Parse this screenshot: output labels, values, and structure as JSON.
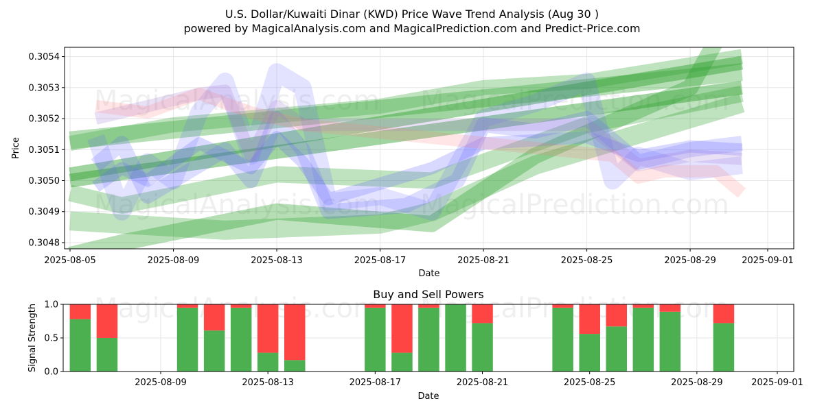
{
  "page": {
    "title_line1": "U.S. Dollar/Kuwaiti Dinar (KWD) Price Wave Trend Analysis (Aug 30 )",
    "title_line2": "powered by MagicalAnalysis.com and MagicalPrediction.com and Predict-Price.com",
    "watermark_left": "MagicalAnalysis.com",
    "watermark_right": "MagicalPrediction.com"
  },
  "chart_data": [
    {
      "type": "line",
      "xlabel": "Date",
      "ylabel": "Price",
      "x_tick_labels": [
        "2025-08-05",
        "2025-08-09",
        "2025-08-13",
        "2025-08-17",
        "2025-08-21",
        "2025-08-25",
        "2025-08-29",
        "2025-09-01"
      ],
      "y_tick_labels": [
        "0.3048",
        "0.3049",
        "0.3050",
        "0.3051",
        "0.3052",
        "0.3053",
        "0.3054"
      ],
      "ylim": [
        0.30478,
        0.30543
      ],
      "xlim": [
        "2025-08-05",
        "2025-09-01"
      ],
      "grid": true,
      "colors": {
        "green": "#2ca02c",
        "blue": "#6666ff",
        "red": "#ff7f7f",
        "purple": "#a070d0"
      },
      "bands": [
        {
          "color": "green",
          "opacity": 0.35,
          "width": 26,
          "points": [
            [
              "2025-08-05",
              0.30513
            ],
            [
              "2025-08-31",
              0.30535
            ]
          ]
        },
        {
          "color": "green",
          "opacity": 0.45,
          "width": 20,
          "points": [
            [
              "2025-08-05",
              0.30502
            ],
            [
              "2025-08-31",
              0.30538
            ]
          ]
        },
        {
          "color": "green",
          "opacity": 0.45,
          "width": 20,
          "points": [
            [
              "2025-08-05",
              0.305
            ],
            [
              "2025-08-31",
              0.3053
            ]
          ]
        },
        {
          "color": "green",
          "opacity": 0.3,
          "width": 28,
          "points": [
            [
              "2025-08-05",
              0.30487
            ],
            [
              "2025-08-11",
              0.30484
            ],
            [
              "2025-08-17",
              0.30486
            ],
            [
              "2025-08-19",
              0.3049
            ],
            [
              "2025-08-23",
              0.30505
            ],
            [
              "2025-08-29",
              0.3052
            ],
            [
              "2025-08-31",
              0.30525
            ]
          ]
        },
        {
          "color": "green",
          "opacity": 0.35,
          "width": 24,
          "points": [
            [
              "2025-08-05",
              0.30476
            ],
            [
              "2025-08-07",
              0.3048
            ],
            [
              "2025-08-13",
              0.3049
            ],
            [
              "2025-08-19",
              0.30486
            ],
            [
              "2025-08-23",
              0.30508
            ],
            [
              "2025-08-29",
              0.3053
            ],
            [
              "2025-08-30",
              0.30545
            ]
          ]
        },
        {
          "color": "green",
          "opacity": 0.3,
          "width": 24,
          "points": [
            [
              "2025-08-05",
              0.30496
            ],
            [
              "2025-08-07",
              0.30492
            ],
            [
              "2025-08-13",
              0.30502
            ],
            [
              "2025-08-19",
              0.305
            ],
            [
              "2025-08-25",
              0.30518
            ],
            [
              "2025-08-31",
              0.30528
            ]
          ]
        },
        {
          "color": "green",
          "opacity": 0.3,
          "width": 22,
          "points": [
            [
              "2025-08-05",
              0.30512
            ],
            [
              "2025-08-09",
              0.30518
            ],
            [
              "2025-08-13",
              0.30521
            ],
            [
              "2025-08-17",
              0.30524
            ],
            [
              "2025-08-21",
              0.3053
            ],
            [
              "2025-08-25",
              0.30532
            ],
            [
              "2025-08-31",
              0.3054
            ]
          ]
        },
        {
          "color": "blue",
          "opacity": 0.18,
          "width": 26,
          "points": [
            [
              "2025-08-06",
              0.30514
            ],
            [
              "2025-08-07",
              0.3049
            ],
            [
              "2025-08-08",
              0.30506
            ],
            [
              "2025-08-09",
              0.305
            ],
            [
              "2025-08-10",
              0.30522
            ],
            [
              "2025-08-11",
              0.30532
            ],
            [
              "2025-08-12",
              0.30508
            ],
            [
              "2025-08-13",
              0.30535
            ],
            [
              "2025-08-14",
              0.3053
            ],
            [
              "2025-08-15",
              0.30493
            ],
            [
              "2025-08-17",
              0.30495
            ],
            [
              "2025-08-19",
              0.3049
            ],
            [
              "2025-08-21",
              0.3052
            ],
            [
              "2025-08-23",
              0.30525
            ],
            [
              "2025-08-25",
              0.30532
            ],
            [
              "2025-08-26",
              0.305
            ],
            [
              "2025-08-27",
              0.30508
            ],
            [
              "2025-08-29",
              0.30503
            ],
            [
              "2025-08-31",
              0.30505
            ]
          ]
        },
        {
          "color": "blue",
          "opacity": 0.22,
          "width": 22,
          "points": [
            [
              "2025-08-06",
              0.30505
            ],
            [
              "2025-08-07",
              0.30512
            ],
            [
              "2025-08-08",
              0.30495
            ],
            [
              "2025-08-10",
              0.30505
            ],
            [
              "2025-08-11",
              0.3051
            ],
            [
              "2025-08-12",
              0.305
            ],
            [
              "2025-08-13",
              0.3052
            ],
            [
              "2025-08-14",
              0.3051
            ],
            [
              "2025-08-15",
              0.3049
            ],
            [
              "2025-08-18",
              0.30492
            ],
            [
              "2025-08-20",
              0.305
            ],
            [
              "2025-08-21",
              0.30518
            ],
            [
              "2025-08-23",
              0.30516
            ],
            [
              "2025-08-25",
              0.3052
            ],
            [
              "2025-08-27",
              0.30506
            ],
            [
              "2025-08-29",
              0.3051
            ],
            [
              "2025-08-31",
              0.30512
            ]
          ]
        },
        {
          "color": "blue",
          "opacity": 0.25,
          "width": 18,
          "points": [
            [
              "2025-08-06",
              0.30498
            ],
            [
              "2025-08-07",
              0.30504
            ],
            [
              "2025-08-08",
              0.305
            ],
            [
              "2025-08-10",
              0.30512
            ],
            [
              "2025-08-12",
              0.30504
            ],
            [
              "2025-08-13",
              0.30514
            ],
            [
              "2025-08-14",
              0.30506
            ],
            [
              "2025-08-15",
              0.30494
            ],
            [
              "2025-08-19",
              0.30504
            ],
            [
              "2025-08-21",
              0.30512
            ],
            [
              "2025-08-25",
              0.30514
            ],
            [
              "2025-08-27",
              0.30508
            ],
            [
              "2025-08-29",
              0.30511
            ],
            [
              "2025-08-31",
              0.3051
            ]
          ]
        },
        {
          "color": "purple",
          "opacity": 0.22,
          "width": 18,
          "points": [
            [
              "2025-08-06",
              0.3052
            ],
            [
              "2025-08-08",
              0.30524
            ],
            [
              "2025-08-10",
              0.30528
            ],
            [
              "2025-08-11",
              0.30529
            ],
            [
              "2025-08-12",
              0.30508
            ],
            [
              "2025-08-13",
              0.30524
            ],
            [
              "2025-08-14",
              0.30518
            ],
            [
              "2025-08-25",
              0.30518
            ],
            [
              "2025-08-27",
              0.30505
            ],
            [
              "2025-08-29",
              0.30508
            ],
            [
              "2025-08-31",
              0.30507
            ]
          ]
        },
        {
          "color": "red",
          "opacity": 0.2,
          "width": 18,
          "points": [
            [
              "2025-08-06",
              0.30524
            ],
            [
              "2025-08-08",
              0.30522
            ],
            [
              "2025-08-10",
              0.30528
            ],
            [
              "2025-08-12",
              0.30522
            ],
            [
              "2025-08-14",
              0.30518
            ],
            [
              "2025-08-26",
              0.30508
            ],
            [
              "2025-08-27",
              0.30501
            ],
            [
              "2025-08-28",
              0.30503
            ],
            [
              "2025-08-30",
              0.30503
            ],
            [
              "2025-08-31",
              0.30496
            ]
          ]
        }
      ]
    },
    {
      "type": "bar",
      "title": "Buy and Sell Powers",
      "xlabel": "Date",
      "ylabel": "Signal Strength",
      "x_tick_labels": [
        "2025-08-09",
        "2025-08-13",
        "2025-08-17",
        "2025-08-21",
        "2025-08-25",
        "2025-08-29",
        "2025-09-01"
      ],
      "y_tick_labels": [
        "0.0",
        "0.5",
        "1.0"
      ],
      "ylim": [
        0,
        1
      ],
      "grid": true,
      "series": [
        {
          "name": "Buy",
          "color": "#4caf50"
        },
        {
          "name": "Sell",
          "color": "#ff4444"
        }
      ],
      "dates": [
        "2025-08-06",
        "2025-08-07",
        "2025-08-10",
        "2025-08-11",
        "2025-08-12",
        "2025-08-13",
        "2025-08-14",
        "2025-08-17",
        "2025-08-18",
        "2025-08-19",
        "2025-08-20",
        "2025-08-21",
        "2025-08-24",
        "2025-08-25",
        "2025-08-26",
        "2025-08-27",
        "2025-08-28",
        "2025-08-30"
      ],
      "buy": [
        0.78,
        0.5,
        0.95,
        0.61,
        0.95,
        0.28,
        0.17,
        0.95,
        0.28,
        0.95,
        1.0,
        0.72,
        0.95,
        0.56,
        0.67,
        0.95,
        0.89,
        0.72
      ]
    }
  ]
}
